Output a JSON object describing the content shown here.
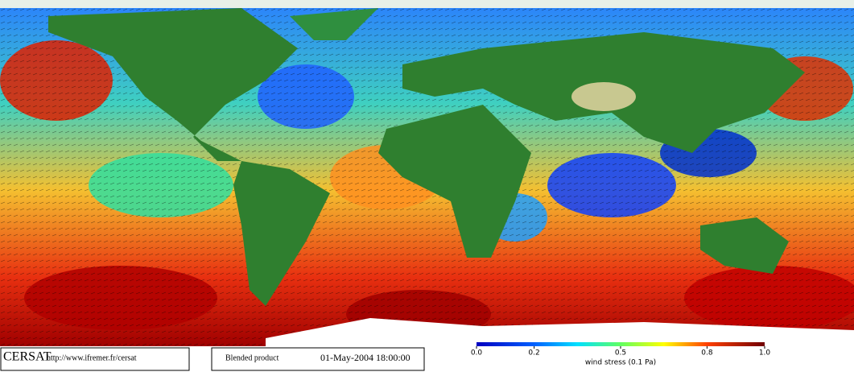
{
  "footer": {
    "logo": "CERSAT",
    "url": "http://www.ifremer.fr/cersat",
    "product": "Blended product",
    "date": "01-May-2004 18:00:00"
  },
  "colorbar": {
    "label": "wind stress (0.1 Pa)",
    "range": [
      0,
      1
    ],
    "ticks": [
      {
        "value": 0,
        "label": "0.0"
      },
      0.2,
      0.5,
      0.8,
      {
        "value": 1,
        "label": "1.0"
      }
    ]
  }
}
